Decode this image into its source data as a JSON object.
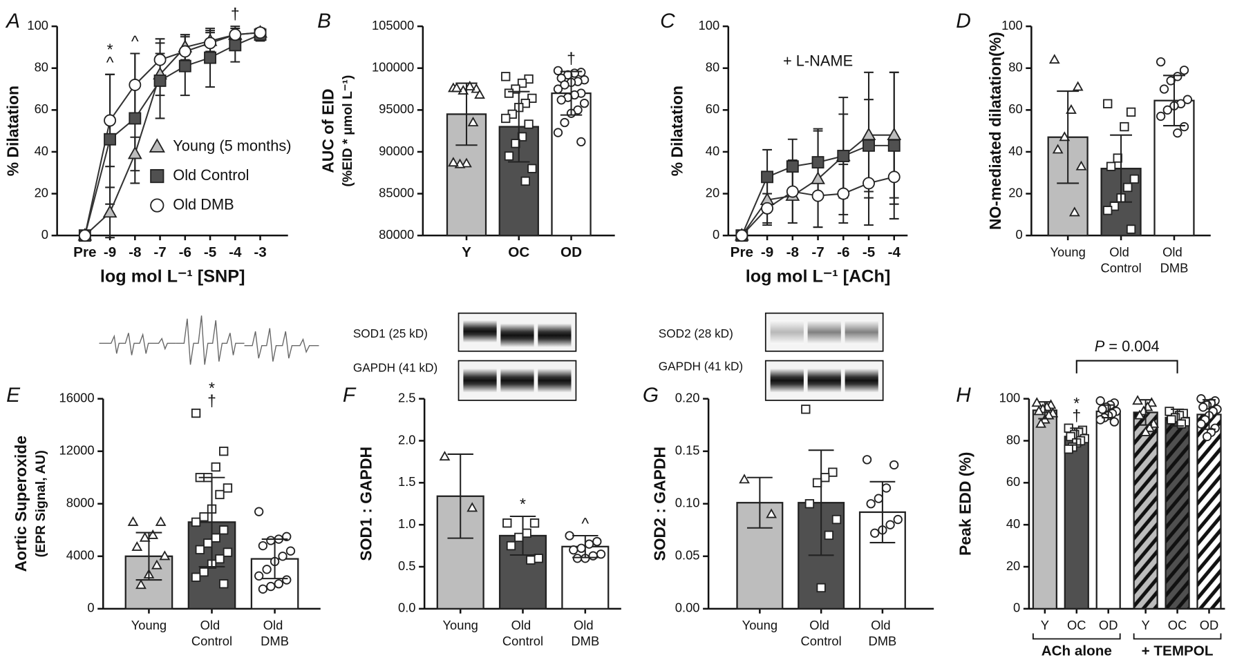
{
  "chart_data": [
    {
      "type": "line",
      "panel": "A",
      "categories": [
        "Pre",
        "-9",
        "-8",
        "-7",
        "-6",
        "-5",
        "-4",
        "-3"
      ],
      "xlabel": "log mol L⁻¹ [SNP]",
      "ylabel": "% Dilatation",
      "ylim": [
        0,
        100
      ],
      "yticks": [
        0,
        20,
        40,
        60,
        80,
        100
      ],
      "legend": "lower right",
      "series": [
        {
          "name": "Young (5 months)",
          "color": "#bdbdbd",
          "marker": "triangle",
          "values": [
            0,
            11,
            39,
            77,
            90,
            93,
            96,
            97
          ],
          "errors": [
            0,
            12,
            8,
            10,
            6,
            5,
            3,
            2
          ]
        },
        {
          "name": "Old Control",
          "color": "#505050",
          "marker": "square",
          "values": [
            0,
            46,
            56,
            74,
            81,
            85,
            91,
            96
          ],
          "errors": [
            0,
            31,
            31,
            18,
            14,
            14,
            8,
            3
          ]
        },
        {
          "name": "Old DMB",
          "color": "#ffffff",
          "marker": "circle",
          "values": [
            0,
            55,
            72,
            84,
            88,
            92,
            96,
            97
          ],
          "errors": [
            0,
            22,
            15,
            10,
            8,
            5,
            4,
            2
          ]
        }
      ],
      "annotations": [
        [],
        [
          "*",
          "^"
        ],
        [
          "^"
        ],
        [],
        [],
        [],
        [
          "†"
        ],
        []
      ]
    },
    {
      "type": "bar",
      "panel": "B",
      "categories": [
        "Y",
        "OC",
        "OD"
      ],
      "ylabel": "AUC of EID",
      "ylabel2": "(%EID * μmol L⁻¹)",
      "ylim": [
        80000,
        105000
      ],
      "yticks": [
        80000,
        85000,
        90000,
        95000,
        100000,
        105000
      ],
      "values": [
        94500,
        93000,
        97000
      ],
      "errors": [
        3700,
        4200,
        2600
      ],
      "colors": [
        "#bdbdbd",
        "#505050",
        "#ffffff"
      ],
      "markers": [
        "triangle",
        "square",
        "circle"
      ],
      "points": [
        [
          97600,
          97500,
          97800,
          97300,
          97600,
          96800,
          93500,
          88600,
          88500,
          88700
        ],
        [
          99000,
          98700,
          98200,
          97500,
          97000,
          96400,
          95800,
          95300,
          94500,
          94000,
          93300,
          91800,
          91000,
          89500,
          88000,
          86500
        ],
        [
          99700,
          99500,
          99400,
          99200,
          98800,
          98600,
          98400,
          98300,
          98000,
          97500,
          97000,
          96800,
          96500,
          96200,
          95800,
          95000,
          94600,
          93500,
          92300,
          91200
        ]
      ],
      "annotations": [
        [],
        [],
        [
          "†"
        ]
      ]
    },
    {
      "type": "line",
      "panel": "C",
      "categories": [
        "Pre",
        "-9",
        "-8",
        "-7",
        "-6",
        "-5",
        "-4"
      ],
      "xlabel": "log mol L⁻¹ [ACh]",
      "ylabel": "% Dilatation",
      "note": "+ L-NAME",
      "ylim": [
        0,
        100
      ],
      "yticks": [
        0,
        20,
        40,
        60,
        80,
        100
      ],
      "series": [
        {
          "name": "Young (5 months)",
          "color": "#bdbdbd",
          "marker": "triangle",
          "values": [
            0,
            17,
            19,
            27,
            38,
            48,
            48
          ],
          "errors": [
            0,
            12,
            13,
            23,
            20,
            30,
            30
          ]
        },
        {
          "name": "Old Control",
          "color": "#505050",
          "marker": "square",
          "values": [
            0,
            28,
            33,
            35,
            38,
            43,
            43
          ],
          "errors": [
            0,
            13,
            13,
            16,
            28,
            22,
            35
          ]
        },
        {
          "name": "Old DMB",
          "color": "#ffffff",
          "marker": "circle",
          "values": [
            0,
            13,
            21,
            19,
            20,
            25,
            28
          ],
          "errors": [
            0,
            7,
            15,
            15,
            14,
            20,
            13
          ]
        }
      ]
    },
    {
      "type": "bar",
      "panel": "D",
      "categories": [
        "Young",
        "Old Control",
        "Old DMB"
      ],
      "ylabel": "NO-mediated dilatation(%)",
      "ylim": [
        0,
        100
      ],
      "yticks": [
        0,
        20,
        40,
        60,
        80,
        100
      ],
      "values": [
        47,
        32,
        64.5
      ],
      "errors": [
        22,
        16,
        12
      ],
      "colors": [
        "#bdbdbd",
        "#505050",
        "#ffffff"
      ],
      "markers": [
        "triangle",
        "square",
        "circle"
      ],
      "points": [
        [
          84,
          71,
          60,
          47,
          41,
          33,
          11
        ],
        [
          63,
          59,
          52,
          37,
          33,
          27,
          23,
          18,
          14,
          12,
          3
        ],
        [
          83,
          79,
          76,
          74,
          70,
          65,
          63,
          62,
          60,
          57,
          52,
          49
        ]
      ]
    },
    {
      "type": "bar",
      "panel": "E",
      "categories": [
        "Young",
        "Old Control",
        "Old DMB"
      ],
      "ylabel": "Aortic Superoxide",
      "ylabel2": "(EPR Signal, AU)",
      "ylim": [
        0,
        16000
      ],
      "yticks": [
        0,
        4000,
        8000,
        12000,
        16000
      ],
      "values": [
        4000,
        6600,
        3800
      ],
      "errors": [
        1800,
        3400,
        1500
      ],
      "colors": [
        "#bdbdbd",
        "#505050",
        "#ffffff"
      ],
      "markers": [
        "triangle",
        "square",
        "circle"
      ],
      "points": [
        [
          6600,
          6600,
          5600,
          5400,
          4700,
          4000,
          3300,
          2600,
          1800
        ],
        [
          14900,
          12000,
          10800,
          10000,
          10000,
          9200,
          8700,
          7600,
          7000,
          6600,
          6000,
          5400,
          5000,
          4500,
          4300,
          3800,
          3400,
          2800,
          2400,
          1900
        ],
        [
          7400,
          5500,
          5300,
          5200,
          4800,
          4400,
          4000,
          3600,
          3000,
          2500,
          2200,
          1900,
          1700,
          1500
        ]
      ],
      "annotations": [
        [],
        [
          "*",
          "†"
        ],
        []
      ]
    },
    {
      "type": "bar",
      "panel": "F",
      "categories": [
        "Young",
        "Old Control",
        "Old DMB"
      ],
      "ylabel": "SOD1 : GAPDH",
      "blot_labels": [
        "SOD1 (25 kD)",
        "GAPDH (41 kD)"
      ],
      "ylim": [
        0,
        2.5
      ],
      "yticks": [
        {
          "value": 0,
          "label": "0.0"
        },
        0.5,
        {
          "value": 1,
          "label": "1.0"
        },
        1.5,
        {
          "value": 2,
          "label": "2.0"
        },
        2.5
      ],
      "values": [
        1.34,
        0.87,
        0.74
      ],
      "errors": [
        0.5,
        0.23,
        0.13
      ],
      "colors": [
        "#bdbdbd",
        "#505050",
        "#ffffff"
      ],
      "markers": [
        "triangle",
        "square",
        "circle"
      ],
      "points": [
        [
          1.81,
          1.2
        ],
        [
          1.02,
          1.02,
          0.9,
          0.85,
          0.75,
          0.6,
          0.58
        ],
        [
          0.87,
          0.8,
          0.77,
          0.72,
          0.7,
          0.65,
          0.63,
          0.6,
          0.6
        ]
      ],
      "annotations": [
        [],
        [
          "*"
        ],
        [
          "^"
        ]
      ]
    },
    {
      "type": "bar",
      "panel": "G",
      "categories": [
        "Young",
        "Old Control",
        "Old DMB"
      ],
      "ylabel": "SOD2 : GAPDH",
      "blot_labels": [
        "SOD2 (28 kD)",
        "GAPDH (41 kD)"
      ],
      "ylim": [
        0,
        0.2
      ],
      "yticks": [
        {
          "value": 0,
          "label": "0.00"
        },
        {
          "value": 0.05,
          "label": "0.05"
        },
        {
          "value": 0.1,
          "label": "0.10"
        },
        {
          "value": 0.15,
          "label": "0.15"
        },
        {
          "value": 0.2,
          "label": "0.20"
        }
      ],
      "values": [
        0.101,
        0.101,
        0.092
      ],
      "errors": [
        0.024,
        0.05,
        0.029
      ],
      "colors": [
        "#bdbdbd",
        "#505050",
        "#ffffff"
      ],
      "markers": [
        "triangle",
        "square",
        "circle"
      ],
      "points": [
        [
          0.123,
          0.09
        ],
        [
          0.19,
          0.13,
          0.125,
          0.12,
          0.1,
          0.085,
          0.07,
          0.02
        ],
        [
          0.142,
          0.137,
          0.115,
          0.105,
          0.1,
          0.085,
          0.08,
          0.075,
          0.072
        ]
      ]
    },
    {
      "type": "bar",
      "panel": "H",
      "categories": [
        "Y",
        "OC",
        "OD",
        "Y",
        "OC",
        "OD"
      ],
      "groups": [
        "ACh alone",
        "+ TEMPOL"
      ],
      "ylabel": "Peak EDD (%)",
      "ylim": [
        0,
        100
      ],
      "yticks": [
        0,
        20,
        40,
        60,
        80,
        100
      ],
      "values": [
        94.5,
        82,
        94,
        93.5,
        91,
        92.5
      ],
      "errors": [
        4,
        4,
        3,
        6,
        4,
        7
      ],
      "colors": [
        "#bdbdbd",
        "#505050",
        "#ffffff",
        "#bdbdbd",
        "#505050",
        "#ffffff"
      ],
      "patterns": [
        "solid",
        "solid",
        "solid",
        "hatched",
        "hatched",
        "hatched"
      ],
      "markers": [
        "triangle",
        "square",
        "circle",
        "triangle",
        "square",
        "circle"
      ],
      "points": [
        [
          98,
          97,
          96,
          95,
          94,
          93,
          92,
          90,
          88
        ],
        [
          86,
          85,
          84,
          83,
          82,
          81,
          80,
          79,
          77,
          76
        ],
        [
          99,
          98,
          97,
          96,
          95,
          94,
          93,
          92,
          91,
          90,
          89
        ],
        [
          99,
          98,
          96,
          94,
          92,
          88,
          86,
          84
        ],
        [
          94,
          93,
          92,
          91,
          90,
          89,
          88
        ],
        [
          100,
          99,
          98,
          97,
          96,
          95,
          94,
          92,
          90,
          88,
          86,
          84,
          82
        ]
      ],
      "annotations": [
        [],
        [
          "*",
          "†"
        ],
        [],
        [],
        [],
        []
      ],
      "comparison": "P = 0.004"
    }
  ]
}
